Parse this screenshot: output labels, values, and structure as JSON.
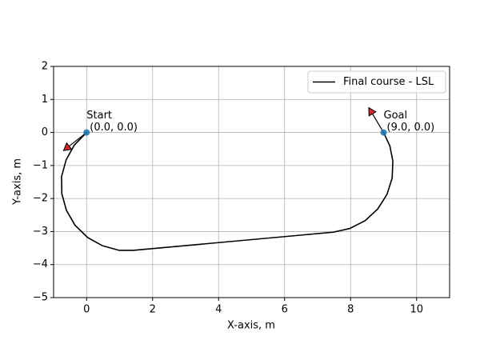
{
  "chart_data": {
    "type": "line",
    "xlabel": "X-axis, m",
    "ylabel": "Y-axis, m",
    "xlim": [
      -1,
      11
    ],
    "ylim": [
      -5,
      2
    ],
    "xticks": [
      0,
      2,
      4,
      6,
      8,
      10
    ],
    "yticks": [
      {
        "value": -5,
        "label": "−5"
      },
      {
        "value": -4,
        "label": "−4"
      },
      {
        "value": -3,
        "label": "−3"
      },
      {
        "value": -2,
        "label": "−2"
      },
      {
        "value": -1,
        "label": "−1"
      },
      0,
      1,
      2
    ],
    "grid": true,
    "legend": "upper right",
    "series": [
      {
        "name": "Final course - LSL",
        "color": "#000000",
        "x": [
          0,
          -0.37,
          -0.62,
          -0.76,
          -0.75,
          -0.61,
          -0.35,
          0.03,
          0.48,
          0.99,
          1.41,
          7.47,
          7.97,
          8.44,
          8.82,
          9.1,
          9.26,
          9.28,
          9.19,
          9
        ],
        "y": [
          0,
          -0.38,
          -0.83,
          -1.34,
          -1.86,
          -2.36,
          -2.81,
          -3.18,
          -3.43,
          -3.57,
          -3.57,
          -3.02,
          -2.91,
          -2.67,
          -2.32,
          -1.88,
          -1.38,
          -0.86,
          -0.41,
          0
        ]
      }
    ],
    "points": {
      "color": "#1f77b4",
      "x": [
        0,
        9
      ],
      "y": [
        0,
        0
      ]
    },
    "arrows": [
      {
        "x": 0,
        "y": 0,
        "dx": -0.7,
        "dy": -0.55,
        "color": "#d62728"
      },
      {
        "x": 9,
        "y": 0,
        "dx": -0.45,
        "dy": 0.75,
        "color": "#d62728"
      }
    ],
    "annotations": [
      {
        "x": 0,
        "y": 0,
        "lines": [
          "Start",
          "(0.0, 0.0)"
        ]
      },
      {
        "x": 9,
        "y": 0,
        "lines": [
          "Goal",
          "(9.0, 0.0)"
        ]
      }
    ]
  }
}
